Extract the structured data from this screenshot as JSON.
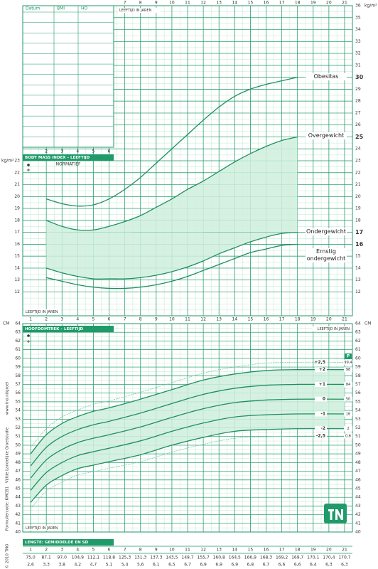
{
  "chart_data": [
    {
      "type": "line",
      "title": "BODY MASS INDEX – LEEFTIJD",
      "subtitle": "NORMATIEF",
      "x_label": "LEEFTIJD IN JAREN",
      "y_label": "kg/m²",
      "xlim": [
        0.5,
        21.5
      ],
      "ylim": [
        10,
        36
      ],
      "xticks": [
        2,
        3,
        4,
        5,
        6,
        7,
        8,
        9,
        10,
        11,
        12,
        13,
        14,
        15,
        16,
        17,
        18,
        19,
        20,
        21
      ],
      "yticks": [
        12,
        13,
        14,
        15,
        16,
        17,
        18,
        19,
        20,
        21,
        22,
        23,
        24,
        25,
        26,
        27,
        28,
        29,
        30,
        31,
        32,
        33,
        34,
        35,
        36
      ],
      "grid": true,
      "shade_between": [
        1,
        2
      ],
      "x": [
        2,
        3,
        4,
        5,
        6,
        7,
        8,
        9,
        10,
        11,
        12,
        13,
        14,
        15,
        16,
        17,
        18
      ],
      "series": [
        {
          "name": "Obesitas",
          "color": "#1f8f5f",
          "values": [
            19.8,
            19.4,
            19.2,
            19.3,
            19.8,
            20.6,
            21.6,
            22.8,
            24.0,
            25.2,
            26.4,
            27.5,
            28.4,
            29.0,
            29.4,
            29.7,
            30.0
          ]
        },
        {
          "name": "Overgewicht",
          "color": "#1f8f5f",
          "values": [
            18.0,
            17.5,
            17.2,
            17.2,
            17.5,
            17.9,
            18.4,
            19.1,
            19.8,
            20.6,
            21.3,
            22.1,
            22.9,
            23.6,
            24.2,
            24.7,
            25.0
          ]
        },
        {
          "name": "Ondergewicht",
          "color": "#1f8f5f",
          "values": [
            14.0,
            13.6,
            13.3,
            13.1,
            13.1,
            13.1,
            13.2,
            13.4,
            13.7,
            14.1,
            14.6,
            15.2,
            15.7,
            16.2,
            16.6,
            16.9,
            17.0
          ]
        },
        {
          "name": "Ernstig ondergewicht",
          "color": "#1f8f5f",
          "values": [
            13.2,
            12.9,
            12.6,
            12.4,
            12.3,
            12.3,
            12.4,
            12.6,
            12.9,
            13.3,
            13.8,
            14.3,
            14.8,
            15.3,
            15.6,
            15.9,
            16.0
          ]
        }
      ]
    },
    {
      "type": "line",
      "title": "HOOFDOMTREK – LEEFTIJD",
      "x_label": "LEEFTIJD IN JAREN",
      "y_label": "CM",
      "percentile_header": "P",
      "xlim": [
        0.5,
        21.5
      ],
      "ylim": [
        40,
        64
      ],
      "xticks": [
        1,
        2,
        3,
        4,
        5,
        6,
        7,
        8,
        9,
        10,
        11,
        12,
        13,
        14,
        15,
        16,
        17,
        18,
        19,
        20,
        21
      ],
      "yticks": [
        40,
        41,
        42,
        43,
        44,
        45,
        46,
        47,
        48,
        49,
        50,
        51,
        52,
        53,
        54,
        55,
        56,
        57,
        58,
        59,
        60,
        61,
        62,
        63,
        64
      ],
      "grid": true,
      "shade_between": [
        1,
        5
      ],
      "x": [
        1,
        2,
        3,
        4,
        5,
        6,
        8,
        10,
        12,
        14,
        16,
        18,
        21
      ],
      "series": [
        {
          "name": "+2,5",
          "percentile": "99,4",
          "style": "dotted",
          "color": "#74c6a0",
          "values": [
            49.7,
            51.9,
            53.25,
            54.05,
            54.7,
            55.1,
            56.1,
            57.2,
            58.3,
            59.0,
            59.45,
            59.55,
            59.55
          ]
        },
        {
          "name": "+2",
          "percentile": "98",
          "color": "#1f8f5f",
          "values": [
            49.0,
            51.2,
            52.5,
            53.3,
            53.9,
            54.3,
            55.3,
            56.4,
            57.5,
            58.2,
            58.6,
            58.7,
            58.7
          ]
        },
        {
          "name": "+1",
          "percentile": "84",
          "color": "#1f8f5f",
          "values": [
            47.6,
            49.75,
            51.0,
            51.8,
            52.35,
            52.75,
            53.7,
            54.8,
            55.85,
            56.55,
            56.9,
            57.0,
            57.0
          ]
        },
        {
          "name": "0",
          "percentile": "50",
          "color": "#1f8f5f",
          "values": [
            46.2,
            48.3,
            49.5,
            50.3,
            50.8,
            51.2,
            52.1,
            53.2,
            54.2,
            54.9,
            55.2,
            55.3,
            55.3
          ]
        },
        {
          "name": "-1",
          "percentile": "16",
          "color": "#1f8f5f",
          "values": [
            44.8,
            46.85,
            48.0,
            48.8,
            49.25,
            49.65,
            50.5,
            51.6,
            52.55,
            53.25,
            53.5,
            53.6,
            53.6
          ]
        },
        {
          "name": "-2",
          "percentile": "2",
          "color": "#1f8f5f",
          "values": [
            43.4,
            45.4,
            46.5,
            47.3,
            47.7,
            48.1,
            48.9,
            50.0,
            50.9,
            51.6,
            51.8,
            51.9,
            51.9
          ]
        },
        {
          "name": "-2,5",
          "percentile": "0,6",
          "style": "dotted",
          "color": "#74c6a0",
          "values": [
            42.7,
            44.7,
            45.75,
            46.55,
            46.95,
            47.35,
            48.1,
            49.2,
            50.1,
            50.8,
            50.95,
            51.05,
            51.05
          ]
        }
      ]
    }
  ],
  "record_table": {
    "columns": [
      "Datum",
      "BMI",
      "HO"
    ]
  },
  "length_table": {
    "title": "LENGTE: GEMIDDELDE EN SD",
    "ages": [
      1,
      2,
      3,
      4,
      5,
      6,
      7,
      8,
      9,
      10,
      11,
      12,
      13,
      14,
      15,
      16,
      17,
      18,
      19,
      20,
      21
    ],
    "means": [
      "75,0",
      "87,1",
      "97,0",
      "104,9",
      "112,1",
      "118,8",
      "125,3",
      "131,3",
      "137,3",
      "143,5",
      "149,7",
      "155,7",
      "160,8",
      "164,5",
      "166,9",
      "168,3",
      "169,2",
      "169,7",
      "170,1",
      "170,4",
      "170,7"
    ],
    "sds": [
      "2,6",
      "3,3",
      "3,8",
      "4,2",
      "4,7",
      "5,1",
      "5,4",
      "5,6",
      "6,1",
      "6,5",
      "6,7",
      "6,9",
      "6,9",
      "6,9",
      "6,8",
      "6,7",
      "6,6",
      "6,6",
      "6,4",
      "6,3",
      "6,3"
    ]
  },
  "side_texts": [
    "www.tno.nl/groei",
    "Vijfde Landelijke Groeistudie",
    "Formuliercode: KMCB1",
    "© 2010 TNO"
  ]
}
